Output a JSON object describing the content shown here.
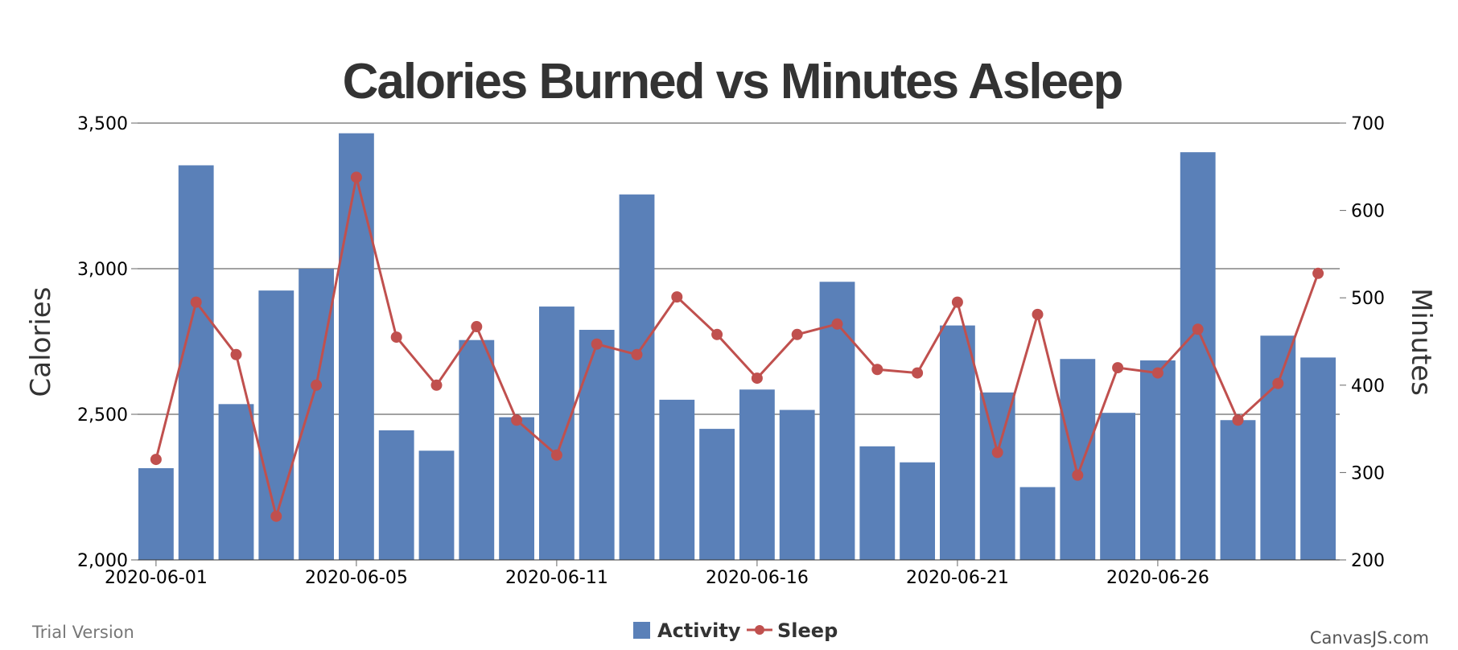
{
  "chart_data": {
    "type": "bar",
    "title": "Calories Burned vs Minutes Asleep",
    "y_axis_left": {
      "label": "Calories",
      "min": 2000,
      "max": 3500,
      "ticks": [
        "2,000",
        "2,500",
        "3,000",
        "3,500"
      ]
    },
    "y_axis_right": {
      "label": "Minutes",
      "min": 200,
      "max": 700,
      "ticks": [
        "200",
        "300",
        "400",
        "500",
        "600",
        "700"
      ]
    },
    "x_tick_labels": [
      {
        "day_index": 0,
        "label": "2020-06-01"
      },
      {
        "day_index": 5,
        "label": "2020-06-05"
      },
      {
        "day_index": 10,
        "label": "2020-06-11"
      },
      {
        "day_index": 15,
        "label": "2020-06-16"
      },
      {
        "day_index": 20,
        "label": "2020-06-21"
      },
      {
        "day_index": 25,
        "label": "2020-06-26"
      }
    ],
    "series": [
      {
        "name": "Activity",
        "type": "bar",
        "axis": "left",
        "color": "#5a80b8",
        "values": [
          2315,
          3355,
          2535,
          2925,
          3000,
          3465,
          2445,
          2375,
          2755,
          2490,
          2870,
          2790,
          3255,
          2550,
          2450,
          2585,
          2515,
          2955,
          2390,
          2335,
          2805,
          2575,
          2250,
          2690,
          2505,
          2685,
          3400,
          2480,
          2770,
          2695
        ]
      },
      {
        "name": "Sleep",
        "type": "line",
        "axis": "right",
        "color": "#c0504e",
        "values": [
          315,
          495,
          435,
          250,
          400,
          638,
          455,
          400,
          467,
          360,
          320,
          447,
          435,
          501,
          458,
          408,
          458,
          470,
          418,
          414,
          495,
          323,
          481,
          297,
          420,
          414,
          464,
          360,
          402,
          528
        ]
      }
    ],
    "legend": {
      "position": "bottom-center",
      "items": [
        "Activity",
        "Sleep"
      ]
    },
    "grid": true
  },
  "footer": {
    "trial_label": "Trial Version",
    "credit_label": "CanvasJS.com"
  },
  "colors": {
    "activity": "#5a80b8",
    "sleep": "#c0504e",
    "title": "#333333",
    "grid": "#444444"
  }
}
